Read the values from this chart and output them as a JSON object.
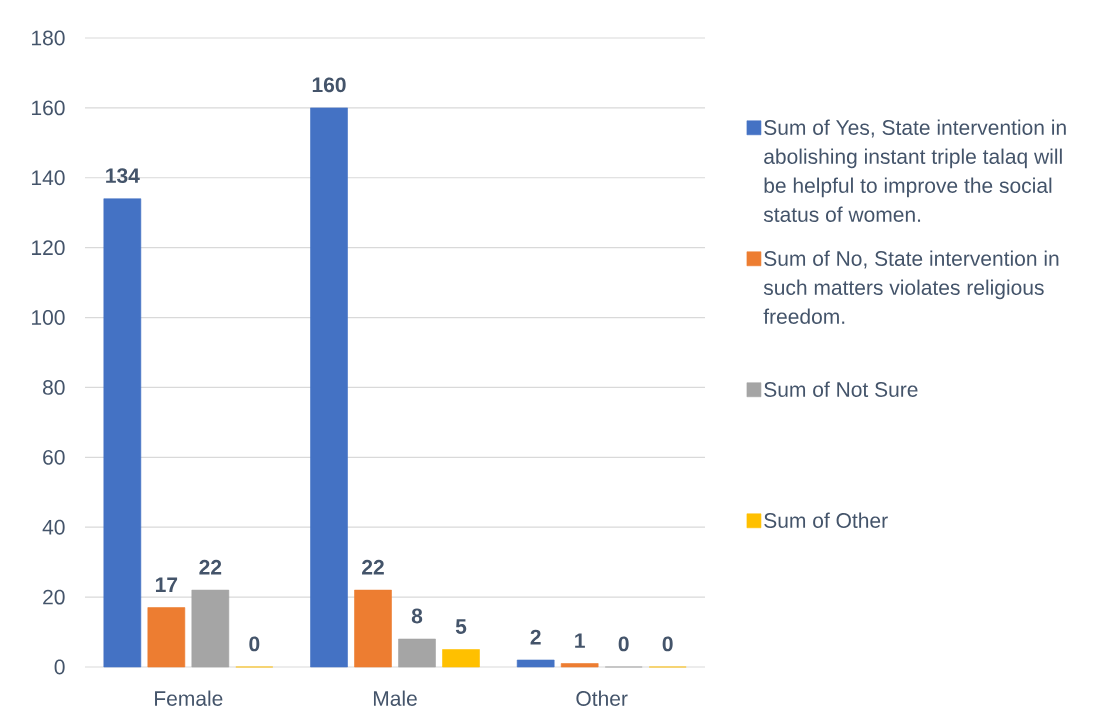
{
  "chart_data": {
    "type": "bar",
    "categories": [
      "Female",
      "Male",
      "Other"
    ],
    "series": [
      {
        "name": "Sum of Yes, State intervention in abolishing instant triple talaq will be helpful to improve the social status of women.",
        "color": "#4472c4",
        "values": [
          134,
          160,
          2
        ]
      },
      {
        "name": "Sum of No, State intervention in such matters violates religious freedom.",
        "color": "#ed7d31",
        "values": [
          17,
          22,
          1
        ]
      },
      {
        "name": "Sum of Not Sure",
        "color": "#a5a5a5",
        "values": [
          22,
          8,
          0
        ]
      },
      {
        "name": "Sum of Other",
        "color": "#ffc000",
        "values": [
          0,
          5,
          0
        ]
      }
    ],
    "ylim": [
      0,
      180
    ],
    "yticks": [
      0,
      20,
      40,
      60,
      80,
      100,
      120,
      140,
      160,
      180
    ],
    "grid": "y",
    "legend": "right",
    "data_labels": true
  }
}
